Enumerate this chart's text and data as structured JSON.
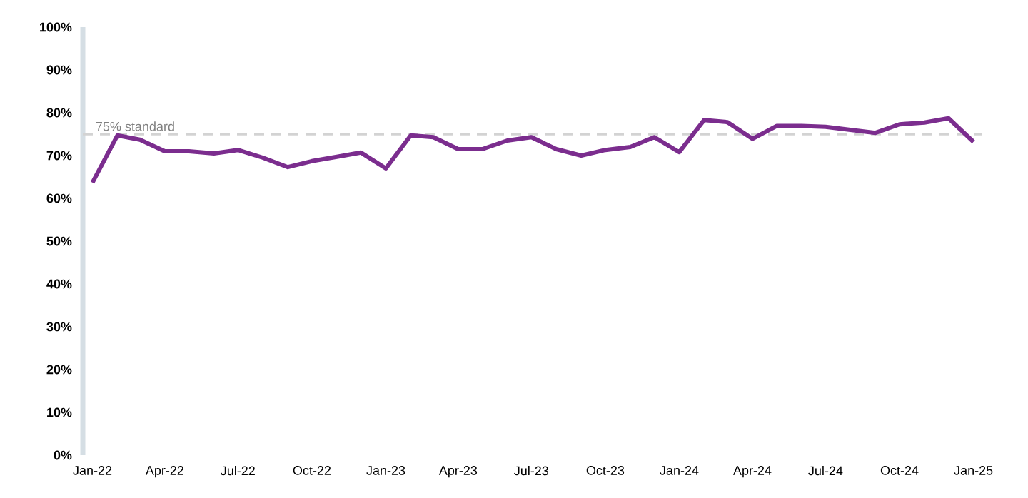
{
  "chart_data": {
    "type": "line",
    "color": "#7b2d8e",
    "line_style": "solid",
    "marker": "none",
    "x": [
      "2022-01",
      "2022-02",
      "2022-03",
      "2022-04",
      "2022-05",
      "2022-06",
      "2022-07",
      "2022-08",
      "2022-09",
      "2022-10",
      "2022-11",
      "2022-12",
      "2023-01",
      "2023-02",
      "2023-03",
      "2023-04",
      "2023-05",
      "2023-06",
      "2023-07",
      "2023-08",
      "2023-09",
      "2023-10",
      "2023-11",
      "2023-12",
      "2024-01",
      "2024-02",
      "2024-03",
      "2024-04",
      "2024-05",
      "2024-06",
      "2024-07",
      "2024-08",
      "2024-09",
      "2024-10",
      "2024-11",
      "2024-12",
      "2025-01"
    ],
    "values": [
      63.7,
      74.7,
      73.7,
      71,
      71,
      70.5,
      71.3,
      69.5,
      67.3,
      68.7,
      69.7,
      70.7,
      67,
      74.7,
      74.3,
      71.5,
      71.5,
      73.5,
      74.3,
      71.5,
      70,
      71.3,
      72,
      74.3,
      70.8,
      78.3,
      77.8,
      73.9,
      76.9,
      76.9,
      76.7,
      76,
      75.3,
      77.3,
      77.7,
      78.7,
      73.2
    ],
    "xlim": [
      "2021-12-20",
      "2025-01-12"
    ],
    "xticks": [
      {
        "value": "2022-01",
        "label": "Jan-22"
      },
      {
        "value": "2022-04",
        "label": "Apr-22"
      },
      {
        "value": "2022-07",
        "label": "Jul-22"
      },
      {
        "value": "2022-10",
        "label": "Oct-22"
      },
      {
        "value": "2023-01",
        "label": "Jan-23"
      },
      {
        "value": "2023-04",
        "label": "Apr-23"
      },
      {
        "value": "2023-07",
        "label": "Jul-23"
      },
      {
        "value": "2023-10",
        "label": "Oct-23"
      },
      {
        "value": "2024-01",
        "label": "Jan-24"
      },
      {
        "value": "2024-04",
        "label": "Apr-24"
      },
      {
        "value": "2024-07",
        "label": "Jul-24"
      },
      {
        "value": "2024-10",
        "label": "Oct-24"
      },
      {
        "value": "2025-01",
        "label": "Jan-25"
      }
    ],
    "ylim": [
      0,
      100
    ],
    "yticks": [
      {
        "value": 0,
        "label": "0%"
      },
      {
        "value": 10,
        "label": "10%"
      },
      {
        "value": 20,
        "label": "20%"
      },
      {
        "value": 30,
        "label": "30%"
      },
      {
        "value": 40,
        "label": "40%"
      },
      {
        "value": 50,
        "label": "50%"
      },
      {
        "value": 60,
        "label": "60%"
      },
      {
        "value": 70,
        "label": "70%"
      },
      {
        "value": 80,
        "label": "80%"
      },
      {
        "value": 90,
        "label": "90%"
      },
      {
        "value": 100,
        "label": "100%"
      }
    ],
    "ref_lines": [
      {
        "axis": "y",
        "value": 75,
        "label": "75% standard",
        "color": "#d3d3d3",
        "line_style": "dashed"
      }
    ]
  }
}
